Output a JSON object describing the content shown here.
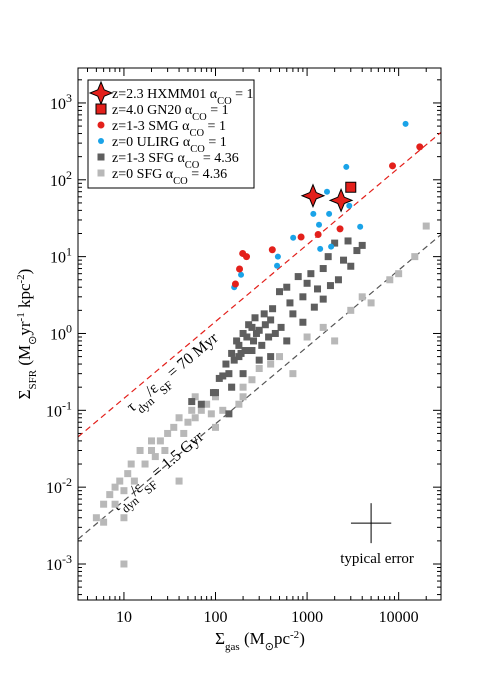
{
  "chart_data": {
    "type": "scatter",
    "x_label": [
      "Σ",
      "gas",
      " (M",
      "⊙",
      "pc",
      "-2",
      ")"
    ],
    "y_label": [
      "Σ",
      "SFR",
      " (M",
      "⊙",
      "yr",
      "-1",
      " kpc",
      "-2",
      ")"
    ],
    "xlim": [
      3.15,
      29000
    ],
    "ylim": [
      0.00034,
      2850
    ],
    "xscale": "log",
    "yscale": "log",
    "xticks": [
      10,
      100,
      1000,
      10000
    ],
    "yticks": [
      {
        "value": 0.001,
        "label": [
          "10",
          "-3"
        ]
      },
      {
        "value": 0.01,
        "label": [
          "10",
          "-2"
        ]
      },
      {
        "value": 0.1,
        "label": [
          "10",
          "-1"
        ]
      },
      {
        "value": 1,
        "label": [
          "10",
          "0"
        ]
      },
      {
        "value": 10,
        "label": [
          "10",
          "1"
        ]
      },
      {
        "value": 100,
        "label": [
          "10",
          "2"
        ]
      },
      {
        "value": 1000,
        "label": [
          "10",
          "3"
        ]
      }
    ],
    "legend": "upper left",
    "series": [
      {
        "name": [
          "z=2.3 HXMM01 α",
          "CO",
          " = 1"
        ],
        "color": "#e3201b",
        "marker": "star",
        "x": [
          1160,
          2350
        ],
        "values": [
          62,
          54
        ]
      },
      {
        "name": [
          "z=4.0 GN20 α",
          "CO",
          " = 1"
        ],
        "color": "#e3201b",
        "marker": "square",
        "x": [
          3000
        ],
        "values": [
          80
        ]
      },
      {
        "name": [
          "z=1-3 SMG α",
          "CO",
          " = 1"
        ],
        "color": "#e3201b",
        "marker": "circle",
        "x": [
          165,
          183,
          198,
          218,
          417,
          860,
          1320,
          2290,
          8570,
          17000
        ],
        "values": [
          4.4,
          6.9,
          11,
          10,
          12.3,
          18,
          19.4,
          23,
          152,
          268
        ]
      },
      {
        "name": [
          "z=0 ULIRG α",
          "CO",
          " = 1"
        ],
        "color": "#1aa3e8",
        "marker": "dot",
        "x": [
          160,
          190,
          470,
          705,
          1170,
          1350,
          1650,
          1740,
          2680,
          2890,
          1830,
          3800,
          11900,
          1390,
          480
        ],
        "values": [
          4,
          5.8,
          7.6,
          17.6,
          36,
          26,
          70,
          36,
          147,
          46,
          13.5,
          24.5,
          535,
          12.6,
          10
        ]
      },
      {
        "name": [
          "z=1-3 SFG α",
          "CO",
          " = 4.36"
        ],
        "color": "#5e5e5e",
        "marker": "bigsquare",
        "x": [
          55,
          70,
          95,
          100,
          110,
          120,
          130,
          140,
          150,
          160,
          170,
          180,
          190,
          200,
          210,
          220,
          230,
          250,
          260,
          270,
          280,
          300,
          320,
          340,
          350,
          380,
          400,
          420,
          450,
          500,
          520,
          600,
          650,
          700,
          800,
          900,
          1000,
          1100,
          1200,
          1300,
          1500,
          1700,
          1800,
          2000,
          2200,
          2500,
          2800,
          3000,
          3500,
          4000,
          150,
          200,
          300,
          400,
          250,
          600,
          900,
          1500,
          140,
          180
        ],
        "values": [
          0.13,
          0.12,
          0.17,
          0.17,
          0.26,
          0.28,
          0.4,
          0.3,
          0.55,
          0.45,
          0.8,
          0.7,
          0.55,
          1.0,
          0.6,
          0.9,
          1.3,
          1.2,
          0.8,
          1.6,
          1.0,
          1.1,
          0.7,
          1.8,
          1.3,
          0.9,
          1.5,
          2.1,
          1.0,
          3.5,
          1.2,
          4.0,
          2.5,
          1.8,
          5.5,
          3.0,
          4.5,
          6.0,
          2.2,
          3.8,
          7.0,
          10,
          4.2,
          15,
          5.0,
          9.0,
          16,
          7.5,
          12,
          14,
          0.2,
          0.3,
          0.45,
          0.5,
          0.6,
          0.8,
          1.4,
          2.8,
          0.09,
          0.5
        ]
      },
      {
        "name": [
          "z=0 SFG α",
          "CO",
          " = 4.36"
        ],
        "color": "#b8b8b8",
        "marker": "bigsquare",
        "x": [
          5,
          6,
          6,
          7,
          8,
          8,
          9,
          10,
          10,
          11,
          12,
          13,
          15,
          17,
          20,
          22,
          25,
          28,
          30,
          35,
          40,
          45,
          50,
          55,
          60,
          70,
          80,
          90,
          100,
          120,
          150,
          180,
          200,
          250,
          300,
          400,
          500,
          700,
          1000,
          1500,
          2000,
          3000,
          4000,
          5000,
          8000,
          10000,
          15000,
          20000,
          10,
          20,
          40,
          60,
          100,
          200
        ],
        "values": [
          0.004,
          0.0035,
          0.006,
          0.008,
          0.006,
          0.01,
          0.012,
          0.009,
          0.001,
          0.015,
          0.02,
          0.012,
          0.03,
          0.02,
          0.03,
          0.025,
          0.04,
          0.03,
          0.05,
          0.06,
          0.08,
          0.05,
          0.07,
          0.1,
          0.08,
          0.1,
          0.12,
          0.09,
          0.15,
          0.1,
          0.2,
          0.12,
          0.2,
          0.25,
          0.35,
          0.4,
          0.5,
          0.3,
          0.9,
          1.2,
          0.8,
          2.0,
          3.0,
          2.5,
          5.0,
          6.0,
          10,
          25,
          0.004,
          0.04,
          0.012,
          0.15,
          0.06,
          0.15
        ]
      }
    ],
    "lines": [
      {
        "label": [
          "τ",
          "dyn",
          "/ε",
          "SF",
          " = 70 Myr"
        ],
        "color": "#e3201b",
        "ratio": 0.01429
      },
      {
        "label": [
          "τ",
          "dyn",
          "/ε",
          "SF",
          " = 1.5 Gyr"
        ],
        "color": "#555555",
        "ratio": 0.000667
      }
    ],
    "typical_error": {
      "label": "typical error",
      "x": 5000,
      "y": 0.0034,
      "x_err_dex": 0.22,
      "y_err_dex": 0.26
    }
  }
}
